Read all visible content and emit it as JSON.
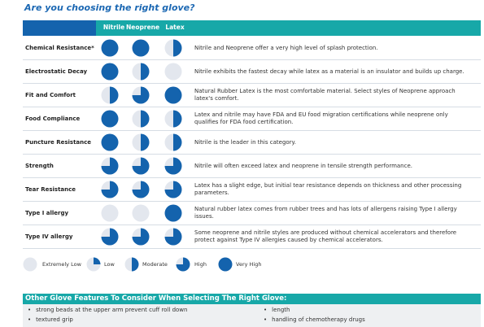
{
  "title": "Are you choosing the right glove?",
  "columns": [
    "Nitrile",
    "Neoprene",
    "Latex"
  ],
  "colors": {
    "dark_blue": "#1463ad",
    "teal": "#17a8a8",
    "empty": "#e3e7ee",
    "title_blue": "#1c68b3"
  },
  "rows": [
    {
      "label": "Chemical Resistance*",
      "levels": [
        4,
        4,
        2
      ],
      "description": "Nitrile and Neoprene offer a very high level of splash protection."
    },
    {
      "label": "Electrostatic Decay",
      "levels": [
        4,
        2,
        0
      ],
      "description": "Nitrile exhibits the fastest decay while latex as a material is an insulator and builds up charge."
    },
    {
      "label": "Fit and Comfort",
      "levels": [
        2,
        3,
        4
      ],
      "description": "Natural Rubber Latex is the most comfortable material. Select styles of Neoprene approach latex's comfort."
    },
    {
      "label": "Food Compliance",
      "levels": [
        4,
        2,
        2
      ],
      "description": "Latex and nitrile may have FDA and EU food migration certifications while neoprene only qualifies for FDA food certification."
    },
    {
      "label": "Puncture Resistance",
      "levels": [
        4,
        2,
        2
      ],
      "description": "Nitrile is the leader in this category."
    },
    {
      "label": "Strength",
      "levels": [
        3,
        3,
        3
      ],
      "description": "Nitrile will often exceed latex and neoprene in tensile strength performance."
    },
    {
      "label": "Tear Resistance",
      "levels": [
        3,
        3,
        3
      ],
      "description": "Latex has a slight edge, but initial tear resistance depends on thickness and other processing parameters."
    },
    {
      "label": "Type I allergy",
      "levels": [
        0,
        0,
        4
      ],
      "description": "Natural rubber latex comes from rubber trees and has lots of allergens raising Type I allergy issues."
    },
    {
      "label": "Type IV allergy",
      "levels": [
        3,
        3,
        3
      ],
      "description": "Some neoprene and nitrile styles are produced without chemical accelerators and therefore protect against Type IV allergies caused by chemical accelerators."
    }
  ],
  "legend": [
    {
      "level": 0,
      "label": "Extremely Low"
    },
    {
      "level": 1,
      "label": "Low"
    },
    {
      "level": 2,
      "label": "Moderate"
    },
    {
      "level": 3,
      "label": "High"
    },
    {
      "level": 4,
      "label": "Very High"
    }
  ],
  "other_features": {
    "title": "Other Glove Features To Consider When Selecting The Right Glove:",
    "left": [
      "strong beads at the upper arm prevent cuff roll down",
      "textured grip"
    ],
    "right": [
      "length",
      "handling of chemotherapy drugs"
    ]
  }
}
